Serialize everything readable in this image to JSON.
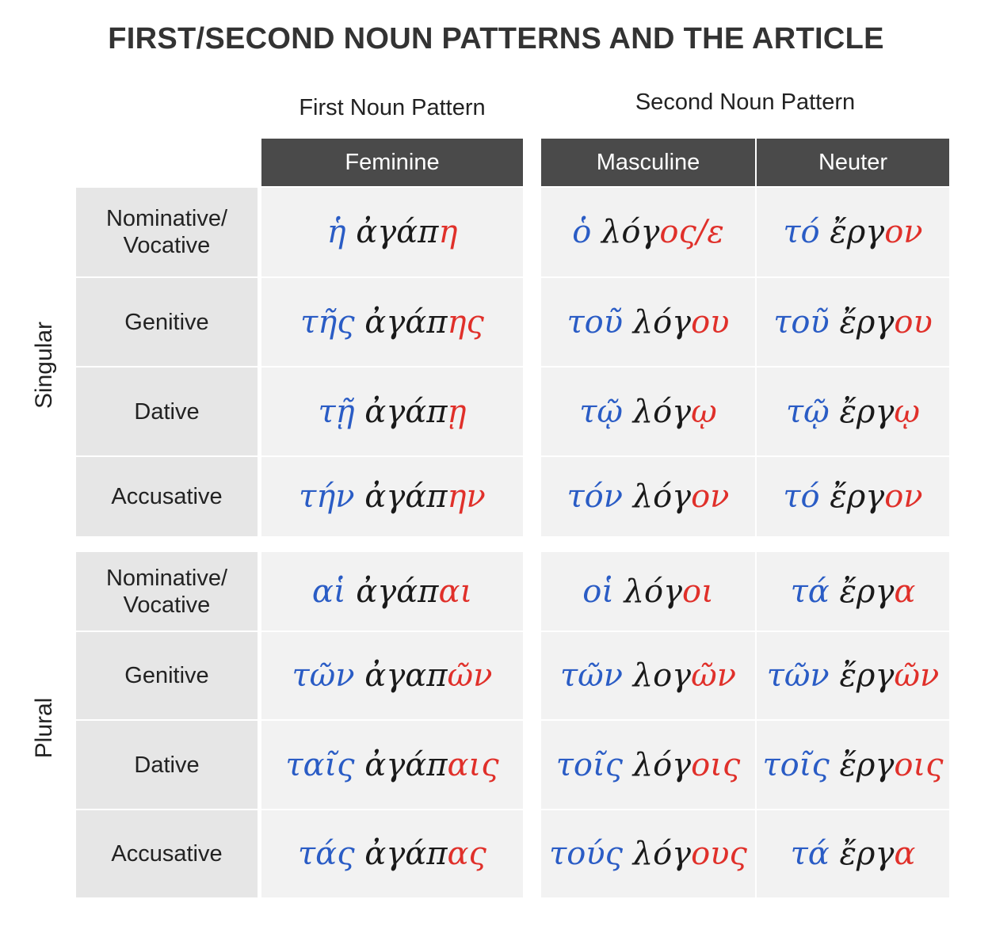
{
  "title": "FIRST/SECOND NOUN PATTERNS AND THE ARTICLE",
  "groups": {
    "first": "First Noun Pattern",
    "second": "Second Noun Pattern"
  },
  "headers": {
    "feminine": "Feminine",
    "masculine": "Masculine",
    "neuter": "Neuter"
  },
  "sides": {
    "singular": "Singular",
    "plural": "Plural"
  },
  "cases": {
    "nom": "Nominative/\nVocative",
    "gen": "Genitive",
    "dat": "Dative",
    "acc": "Accusative"
  },
  "singular": {
    "nom": {
      "fem": {
        "art": "ἡ",
        "stem": " ἀγάπ",
        "end": "η"
      },
      "masc": {
        "art": "ὁ",
        "stem": " λόγ",
        "end": "ος/ε"
      },
      "neut": {
        "art": "τό",
        "stem": " ἔργ",
        "end": "ον"
      }
    },
    "gen": {
      "fem": {
        "art": "τῆς",
        "stem": " ἀγάπ",
        "end": "ης"
      },
      "masc": {
        "art": "τοῦ",
        "stem": " λόγ",
        "end": "ου"
      },
      "neut": {
        "art": "τοῦ",
        "stem": " ἔργ",
        "end": "ου"
      }
    },
    "dat": {
      "fem": {
        "art": "τῇ",
        "stem": " ἀγάπ",
        "end": "ῃ"
      },
      "masc": {
        "art": "τῷ",
        "stem": " λόγ",
        "end": "ῳ"
      },
      "neut": {
        "art": "τῷ",
        "stem": " ἔργ",
        "end": "ῳ"
      }
    },
    "acc": {
      "fem": {
        "art": "τήν",
        "stem": " ἀγάπ",
        "end": "ην"
      },
      "masc": {
        "art": "τόν",
        "stem": " λόγ",
        "end": "ον"
      },
      "neut": {
        "art": "τό",
        "stem": " ἔργ",
        "end": "ον"
      }
    }
  },
  "plural": {
    "nom": {
      "fem": {
        "art": "αἱ",
        "stem": " ἀγάπ",
        "end": "αι"
      },
      "masc": {
        "art": "οἱ",
        "stem": " λόγ",
        "end": "οι"
      },
      "neut": {
        "art": "τά",
        "stem": " ἔργ",
        "end": "α"
      }
    },
    "gen": {
      "fem": {
        "art": "τῶν",
        "stem": " ἀγαπ",
        "end": "ῶν"
      },
      "masc": {
        "art": "τῶν",
        "stem": " λογ",
        "end": "ῶν"
      },
      "neut": {
        "art": "τῶν",
        "stem": " ἔργ",
        "end": "ῶν"
      }
    },
    "dat": {
      "fem": {
        "art": "ταῖς",
        "stem": " ἀγάπ",
        "end": "αις"
      },
      "masc": {
        "art": "τοῖς",
        "stem": " λόγ",
        "end": "οις"
      },
      "neut": {
        "art": "τοῖς",
        "stem": " ἔργ",
        "end": "οις"
      }
    },
    "acc": {
      "fem": {
        "art": "τάς",
        "stem": " ἀγάπ",
        "end": "ας"
      },
      "masc": {
        "art": "τούς",
        "stem": " λόγ",
        "end": "ους"
      },
      "neut": {
        "art": "τά",
        "stem": " ἔργ",
        "end": "α"
      }
    }
  },
  "colors": {
    "article": "#2a5cc5",
    "stem": "#1a1a1a",
    "ending": "#e0302a",
    "header_bg": "#4a4a4a",
    "label_bg": "#e6e6e6",
    "cell_bg": "#f2f2f2"
  }
}
